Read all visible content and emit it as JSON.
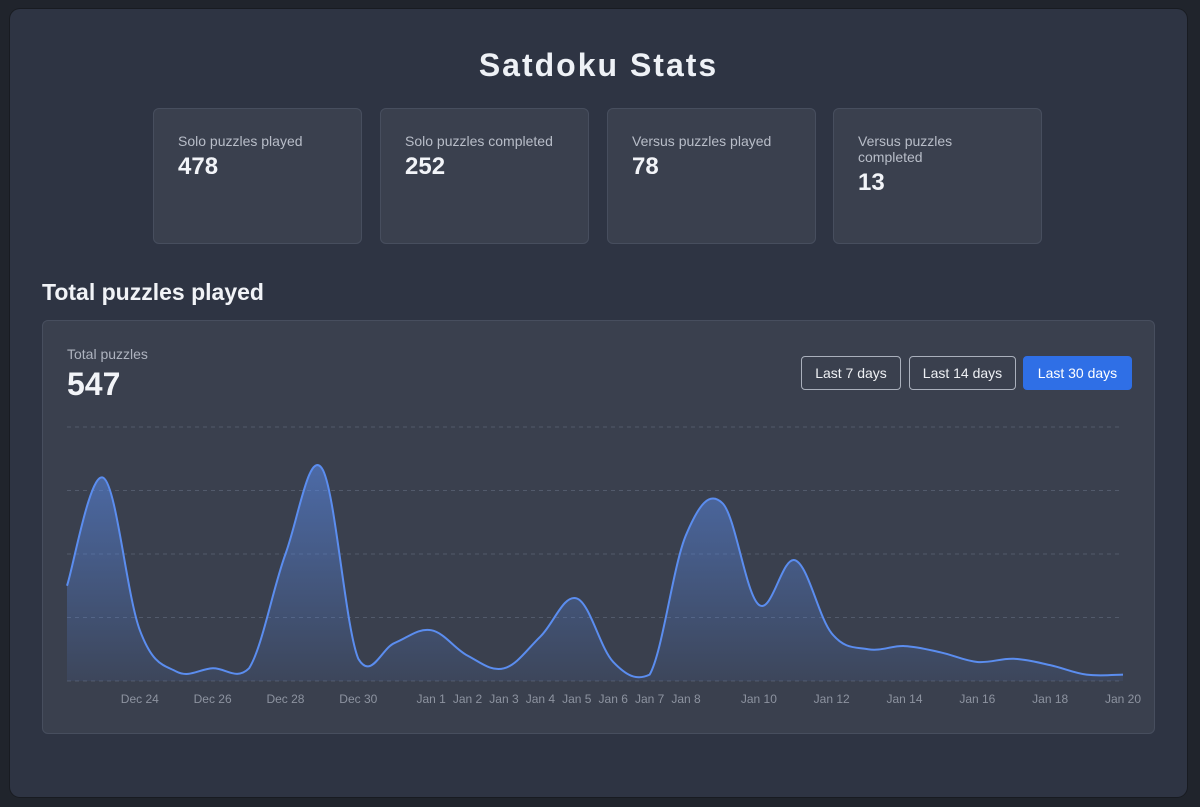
{
  "page": {
    "title": "Satdoku Stats"
  },
  "stats": [
    {
      "label": "Solo puzzles played",
      "value": "478"
    },
    {
      "label": "Solo puzzles completed",
      "value": "252"
    },
    {
      "label": "Versus puzzles played",
      "value": "78"
    },
    {
      "label": "Versus puzzles completed",
      "value": "13"
    }
  ],
  "section": {
    "title": "Total puzzles played"
  },
  "summary": {
    "label": "Total puzzles",
    "value": "547"
  },
  "range_buttons": [
    {
      "label": "Last 7 days",
      "active": false
    },
    {
      "label": "Last 14 days",
      "active": false
    },
    {
      "label": "Last 30 days",
      "active": true
    }
  ],
  "colors": {
    "accent": "#2f6fe6",
    "line": "#5b8def",
    "card": "#3a404e",
    "background": "#2e3443"
  },
  "chart_data": {
    "type": "area",
    "title": "Total puzzles played",
    "x": [
      "Dec 22",
      "Dec 23",
      "Dec 24",
      "Dec 25",
      "Dec 26",
      "Dec 27",
      "Dec 28",
      "Dec 29",
      "Dec 30",
      "Dec 31",
      "Jan 1",
      "Jan 2",
      "Jan 3",
      "Jan 4",
      "Jan 5",
      "Jan 6",
      "Jan 7",
      "Jan 8",
      "Jan 9",
      "Jan 10",
      "Jan 11",
      "Jan 12",
      "Jan 13",
      "Jan 14",
      "Jan 15",
      "Jan 16",
      "Jan 17",
      "Jan 18",
      "Jan 19",
      "Jan 20"
    ],
    "values": [
      15,
      32,
      8,
      1.5,
      2,
      2,
      20,
      33.5,
      3.5,
      6,
      8,
      4,
      2,
      7,
      13,
      3,
      1,
      23,
      28,
      12,
      19,
      7.5,
      5,
      5.5,
      4.5,
      3,
      3.5,
      2.5,
      1,
      1
    ],
    "tick_labels": [
      "Dec 24",
      "Dec 26",
      "Dec 28",
      "Dec 30",
      "Jan 1",
      "Jan 2",
      "Jan 3",
      "Jan 4",
      "Jan 5",
      "Jan 6",
      "Jan 7",
      "Jan 8",
      "Jan 10",
      "Jan 12",
      "Jan 14",
      "Jan 16",
      "Jan 18",
      "Jan 20"
    ],
    "ylim": [
      0,
      40
    ],
    "grid": true,
    "xlabel": "",
    "ylabel": ""
  }
}
